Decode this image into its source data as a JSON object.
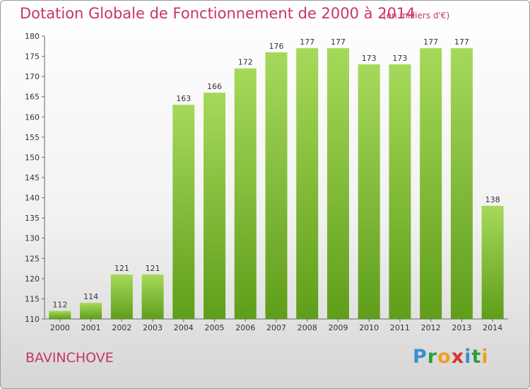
{
  "chart_data": {
    "type": "bar",
    "title": "Dotation Globale de Fonctionnement de 2000 à 2014",
    "subtitle": "(en milliers d'€)",
    "categories": [
      "2000",
      "2001",
      "2002",
      "2003",
      "2004",
      "2005",
      "2006",
      "2007",
      "2008",
      "2009",
      "2010",
      "2011",
      "2012",
      "2013",
      "2014"
    ],
    "values": [
      112,
      114,
      121,
      121,
      163,
      166,
      172,
      176,
      177,
      177,
      173,
      173,
      177,
      177,
      138
    ],
    "ylim": [
      110,
      180
    ],
    "yticks": [
      110,
      115,
      120,
      125,
      130,
      135,
      140,
      145,
      150,
      155,
      160,
      165,
      170,
      175,
      180
    ],
    "xlabel": "",
    "ylabel": "",
    "grid": false,
    "bar_color": "#7fc230"
  },
  "footer": {
    "place_name": "BAVINCHOVE",
    "logo_letters": [
      "P",
      "r",
      "o",
      "x",
      "i",
      "t",
      "i"
    ]
  }
}
